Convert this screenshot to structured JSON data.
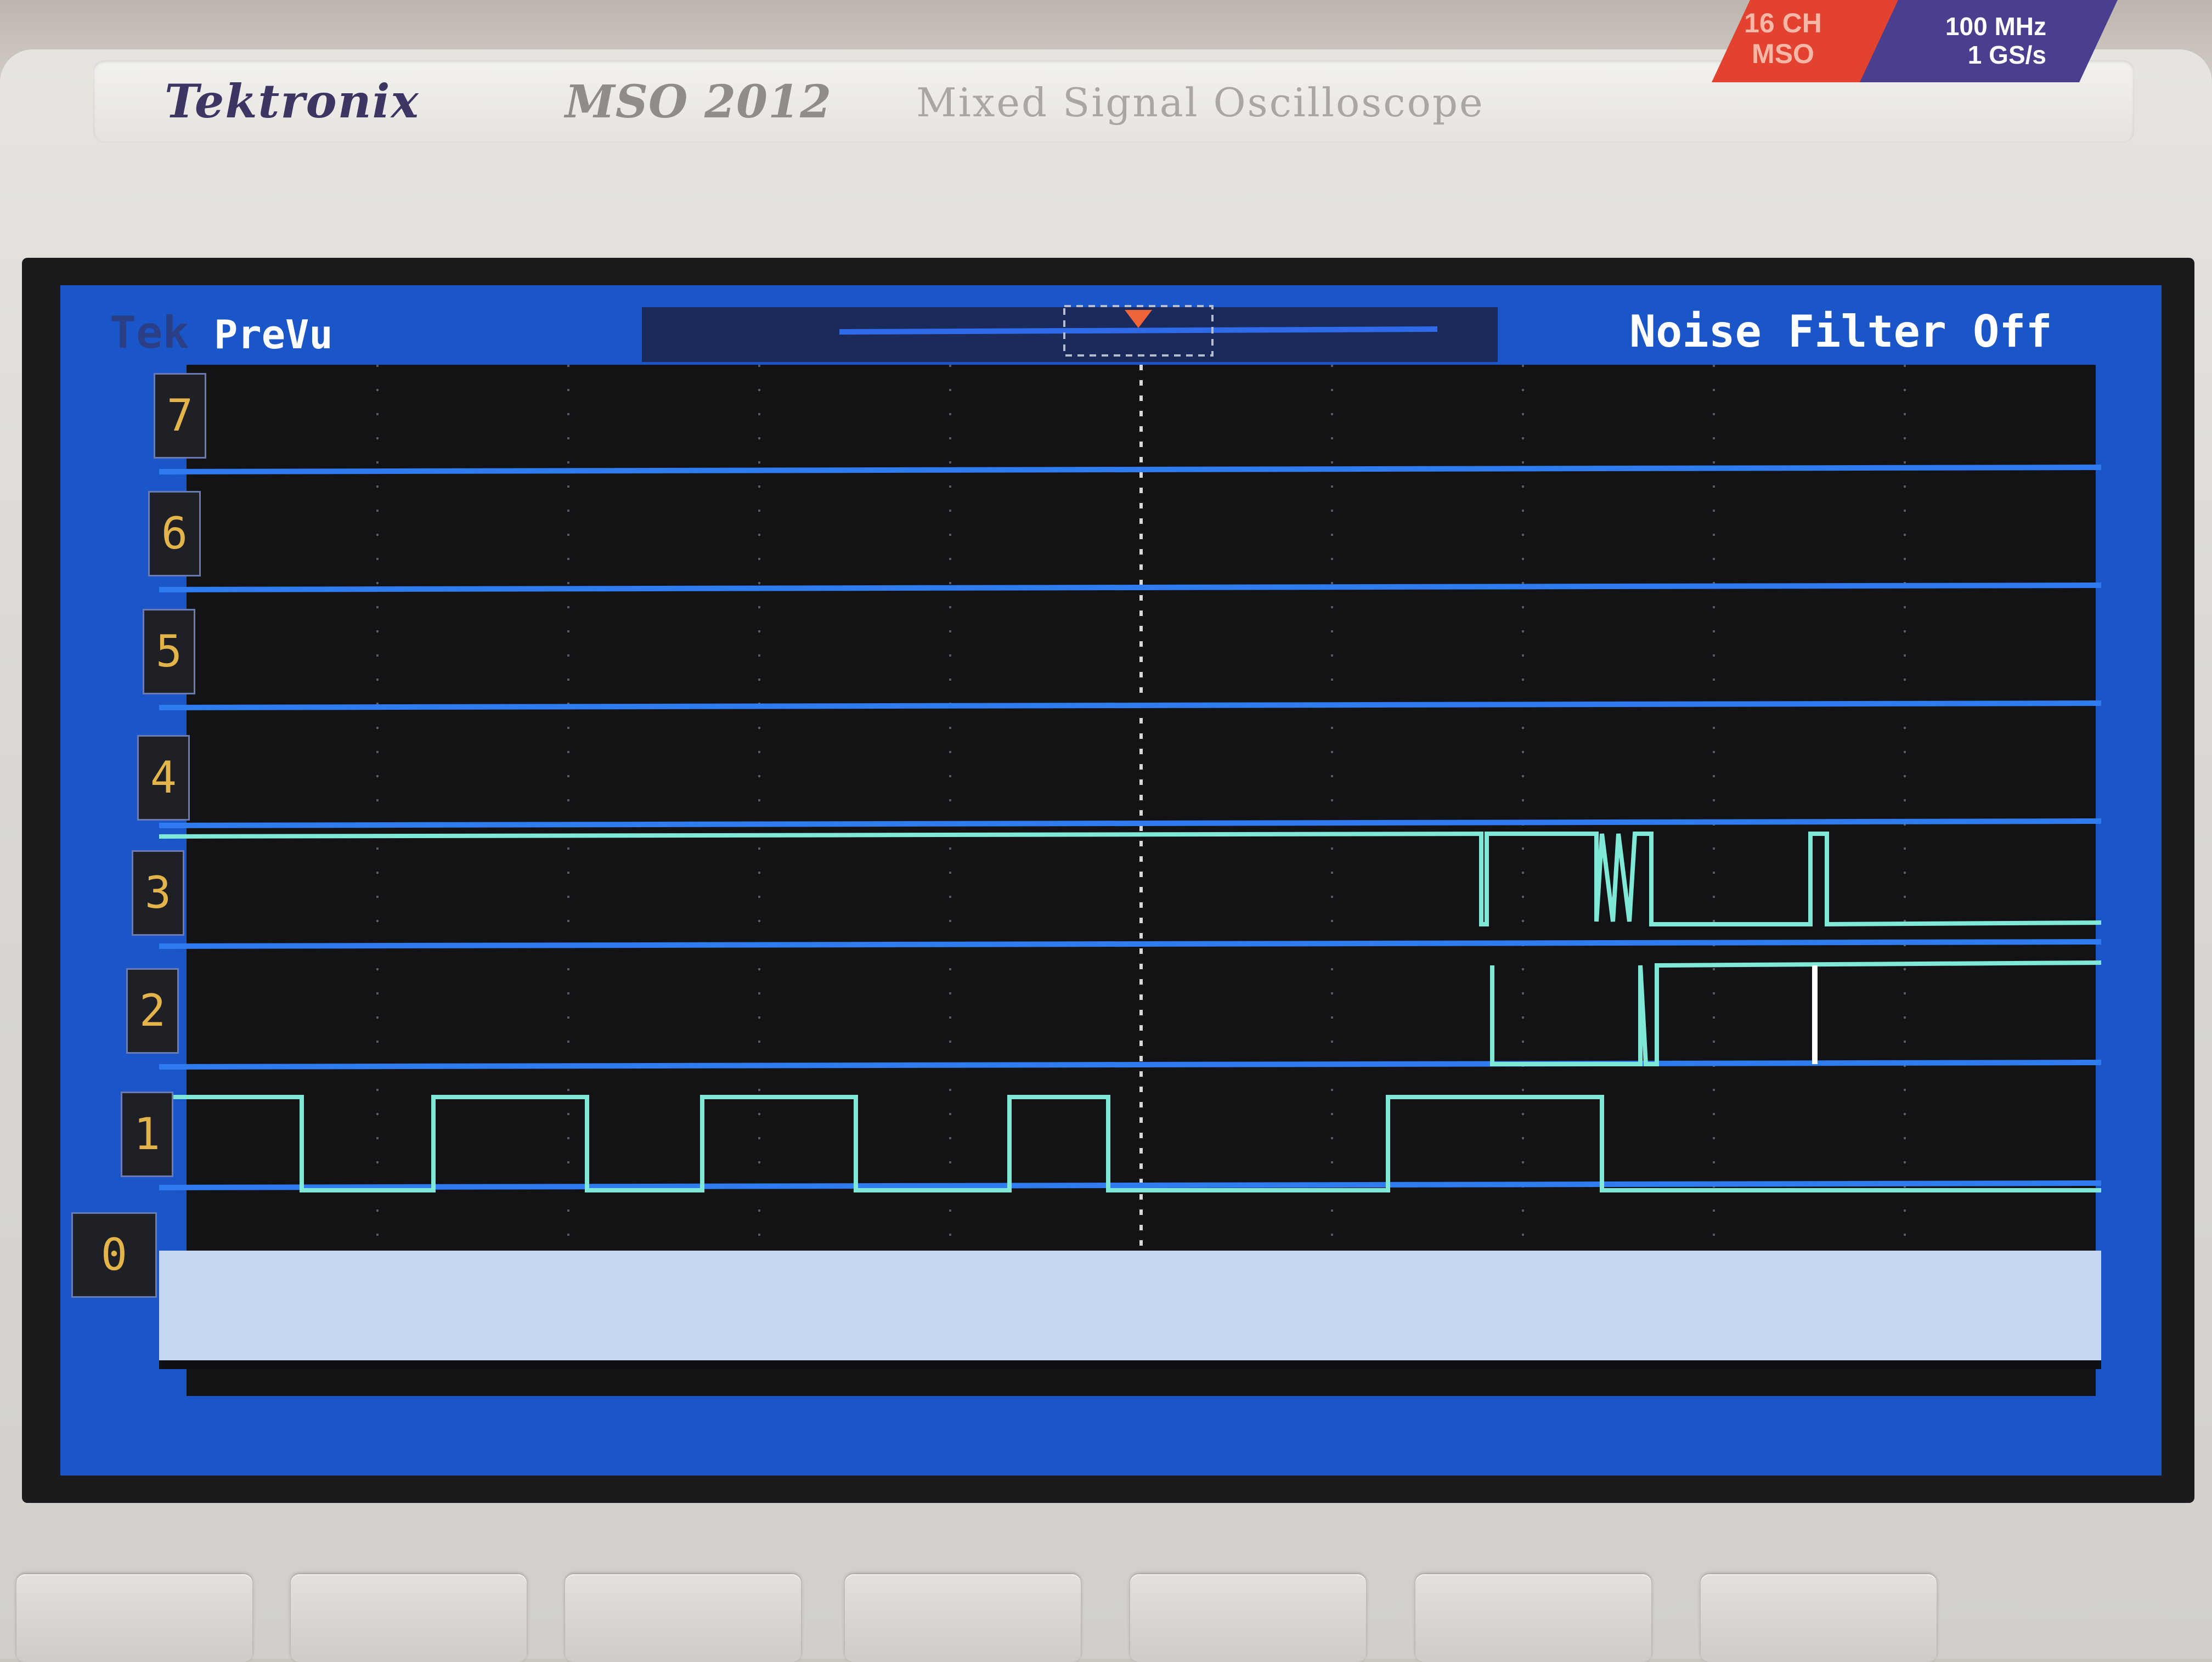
{
  "instrument": {
    "brand": "Tektronix",
    "model": "MSO 2012",
    "description": "Mixed Signal Oscilloscope",
    "badge_channels": "16 CH MSO",
    "badge_bandwidth_line1": "100 MHz",
    "badge_bandwidth_line2": "1 GS/s"
  },
  "display": {
    "logo": "Tek",
    "acquisition_state": "PreVu",
    "noise_filter": "Noise Filter Off",
    "background_color": "#1a56c8",
    "grid_color": "#000000",
    "trace_color": "#7fe8d6"
  },
  "channels": [
    {
      "label": "7",
      "state": "low"
    },
    {
      "label": "6",
      "state": "low"
    },
    {
      "label": "5",
      "state": "low"
    },
    {
      "label": "4",
      "state": "low"
    },
    {
      "label": "3",
      "state": "activity"
    },
    {
      "label": "2",
      "state": "activity"
    },
    {
      "label": "1",
      "state": "clock"
    },
    {
      "label": "0",
      "state": "selected"
    }
  ],
  "soft_buttons_count": 7
}
